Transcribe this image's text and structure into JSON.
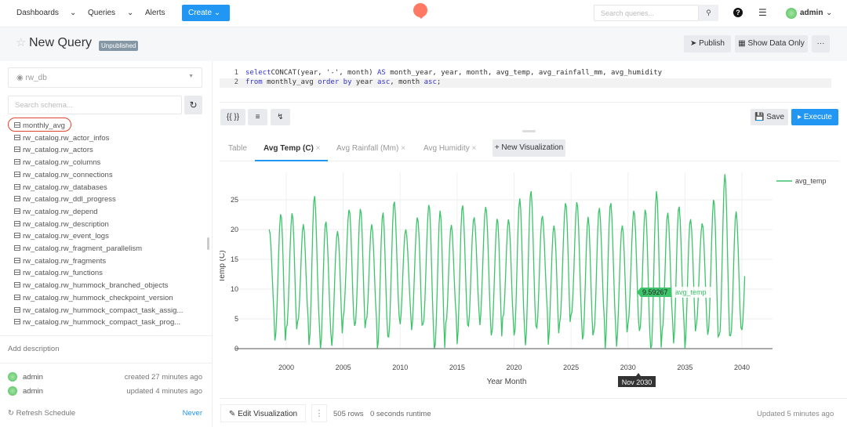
{
  "nav": {
    "dashboards": "Dashboards",
    "queries": "Queries",
    "alerts": "Alerts",
    "create": "Create",
    "search_placeholder": "Search queries...",
    "user": "admin"
  },
  "header": {
    "title": "New Query",
    "badge": "Unpublished",
    "publish": "Publish",
    "show_data_only": "Show Data Only",
    "more": "···"
  },
  "sidebar": {
    "datasource": "rw_db",
    "schema_placeholder": "Search schema...",
    "tables": [
      "monthly_avg",
      "rw_catalog.rw_actor_infos",
      "rw_catalog.rw_actors",
      "rw_catalog.rw_columns",
      "rw_catalog.rw_connections",
      "rw_catalog.rw_databases",
      "rw_catalog.rw_ddl_progress",
      "rw_catalog.rw_depend",
      "rw_catalog.rw_description",
      "rw_catalog.rw_event_logs",
      "rw_catalog.rw_fragment_parallelism",
      "rw_catalog.rw_fragments",
      "rw_catalog.rw_functions",
      "rw_catalog.rw_hummock_branched_objects",
      "rw_catalog.rw_hummock_checkpoint_version",
      "rw_catalog.rw_hummock_compact_task_assig...",
      "rw_catalog.rw_hummock_compact_task_prog..."
    ],
    "add_description": "Add description",
    "created_by": "admin",
    "created": "created 27 minutes ago",
    "updated_by": "admin",
    "updated": "updated 4 minutes ago",
    "refresh_label": "Refresh Schedule",
    "refresh_value": "Never"
  },
  "editor": {
    "lines": [
      {
        "n": "1",
        "parts": [
          [
            "kw",
            "select"
          ],
          [
            "",
            "CONCAT(year, '-', month) "
          ],
          [
            "kw",
            "AS"
          ],
          [
            "",
            " month_year, year, month, avg_temp, avg_rainfall_mm, avg_humidity"
          ]
        ]
      },
      {
        "n": "2",
        "parts": [
          [
            "kw",
            "from"
          ],
          [
            "",
            " monthly_avg "
          ],
          [
            "kw",
            "order by"
          ],
          [
            "",
            " year "
          ],
          [
            "kw",
            "asc"
          ],
          [
            "",
            ", month "
          ],
          [
            "kw",
            "asc"
          ],
          [
            "",
            ";"
          ]
        ]
      }
    ],
    "params_btn": "{{ }}",
    "save": "Save",
    "execute": "Execute"
  },
  "tabs": [
    {
      "label": "Table",
      "active": false
    },
    {
      "label": "Avg Temp (C)",
      "active": true,
      "closable": true
    },
    {
      "label": "Avg Rainfall (Mm)",
      "closable": true
    },
    {
      "label": "Avg Humidity",
      "closable": true
    }
  ],
  "new_visualization": "+ New Visualization",
  "footer": {
    "edit_visualization": "Edit Visualization",
    "rows": "505 rows",
    "runtime": "0 seconds runtime",
    "updated": "Updated 5 minutes ago"
  },
  "colors": {
    "accent": "#2196f3",
    "series": "#3dc46b",
    "highlight": "#e0462f"
  },
  "chart_data": {
    "type": "line",
    "xlabel": "Year Month",
    "ylabel": "Temp (C)",
    "x_ticks": [
      "2000",
      "2005",
      "2010",
      "2015",
      "2020",
      "2025",
      "2030",
      "2035",
      "2040"
    ],
    "y_ticks": [
      "0",
      "5",
      "10",
      "15",
      "20",
      "25"
    ],
    "xlim": [
      1996.5,
      2044.5
    ],
    "ylim": [
      0,
      28
    ],
    "legend": {
      "position": "top-right",
      "entries": [
        "avg_temp"
      ]
    },
    "series": [
      {
        "name": "avg_temp",
        "start": "1998-07",
        "end": "2040-04",
        "years": [
          1998,
          1999,
          2000,
          2001,
          2002,
          2003,
          2004,
          2005,
          2006,
          2007,
          2008,
          2009,
          2010,
          2011,
          2012,
          2013,
          2014,
          2015,
          2016,
          2017,
          2018,
          2019,
          2020,
          2021,
          2022,
          2023,
          2024,
          2025,
          2026,
          2027,
          2028,
          2029,
          2030,
          2031,
          2032,
          2033,
          2034,
          2035,
          2036,
          2037,
          2038,
          2039,
          2040
        ],
        "annual_max": [
          21,
          23,
          22,
          20,
          25,
          22,
          21,
          24,
          23,
          20,
          22,
          25,
          21,
          23,
          24,
          22,
          20,
          24,
          23,
          25,
          22,
          21,
          24,
          26,
          23,
          22,
          25,
          24,
          21,
          23,
          25,
          22,
          24,
          23,
          25,
          22,
          24,
          23,
          22,
          25,
          28,
          22,
          19
        ],
        "annual_min": [
          4,
          0,
          3,
          5,
          2,
          0,
          0,
          4,
          3,
          5,
          1,
          3,
          4,
          2,
          3,
          0,
          5,
          2,
          4,
          3,
          1,
          5,
          3,
          2,
          4,
          0,
          3,
          5,
          2,
          4,
          1,
          0,
          3,
          2,
          0,
          4,
          2,
          0,
          3,
          1,
          2,
          3,
          4
        ]
      }
    ],
    "hover": {
      "x_label": "Nov 2030",
      "value": "9.59267",
      "series": "avg_temp"
    }
  }
}
